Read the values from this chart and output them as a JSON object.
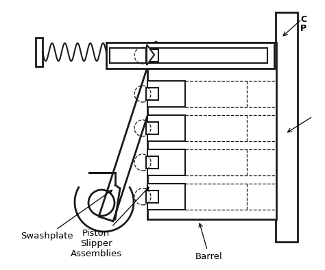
{
  "bg_color": "#ffffff",
  "lc": "#1a1a1a",
  "lw": 1.5,
  "lw2": 2.0,
  "figsize": [
    4.74,
    3.94
  ],
  "dpi": 100,
  "labels": {
    "swashplate": "Swashplate",
    "piston": "Piston\nSlipper\nAssemblies",
    "barrel": "Barrel",
    "tr1": "C",
    "tr2": "P"
  }
}
